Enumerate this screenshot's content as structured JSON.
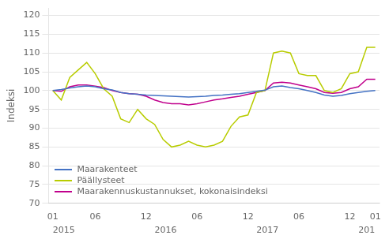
{
  "chart_data": {
    "type": "line",
    "y_label": "Indeksi",
    "categories": [
      "01",
      null,
      null,
      null,
      null,
      "06",
      null,
      null,
      null,
      null,
      null,
      "12",
      null,
      null,
      null,
      null,
      null,
      "06",
      null,
      null,
      null,
      null,
      null,
      "12",
      null,
      null,
      null,
      null,
      null,
      "06",
      null,
      null,
      null,
      null,
      null,
      "12",
      null,
      null,
      "01"
    ],
    "series": [
      {
        "name": "Maarakenteet",
        "color": "#4472c4",
        "values": [
          100.0,
          100.3,
          100.7,
          101.0,
          101.2,
          101.0,
          100.5,
          100.2,
          99.5,
          99.2,
          99.0,
          98.8,
          98.7,
          98.6,
          98.5,
          98.4,
          98.3,
          98.4,
          98.5,
          98.7,
          98.8,
          99.0,
          99.2,
          99.5,
          99.8,
          100.1,
          101.0,
          101.2,
          100.8,
          100.5,
          100.0,
          99.5,
          98.8,
          98.5,
          98.7,
          99.2,
          99.5,
          99.8,
          100.0
        ]
      },
      {
        "name": "Päällysteet",
        "color": "#b8cc00",
        "values": [
          100.0,
          97.5,
          103.5,
          105.5,
          107.5,
          104.5,
          100.5,
          98.5,
          92.5,
          91.5,
          95.0,
          92.5,
          91.0,
          87.0,
          85.0,
          85.5,
          86.5,
          85.5,
          85.0,
          85.5,
          86.5,
          90.5,
          93.0,
          93.5,
          99.5,
          100.0,
          110.0,
          110.5,
          110.0,
          104.5,
          104.0,
          104.0,
          100.0,
          99.5,
          100.5,
          104.5,
          105.0,
          111.5,
          111.5
        ]
      },
      {
        "name": "Maarakennuskustannukset, kokonaisindeksi",
        "color": "#c0008c",
        "values": [
          100.0,
          99.8,
          101.0,
          101.5,
          101.5,
          101.2,
          100.8,
          100.0,
          99.5,
          99.2,
          99.0,
          98.5,
          97.5,
          96.8,
          96.5,
          96.5,
          96.2,
          96.5,
          97.0,
          97.5,
          97.8,
          98.2,
          98.5,
          99.0,
          99.5,
          100.0,
          102.0,
          102.2,
          102.0,
          101.5,
          101.0,
          100.5,
          99.5,
          99.3,
          99.5,
          100.5,
          101.0,
          103.0,
          103.0
        ]
      }
    ],
    "annotations": [
      {
        "x": 0,
        "text": "2015"
      },
      {
        "x": 12,
        "text": "2016"
      },
      {
        "x": 24,
        "text": "2017"
      },
      {
        "x": 36,
        "text": "201"
      }
    ],
    "ylim": [
      70,
      122
    ],
    "yticks": [
      70,
      75,
      80,
      85,
      90,
      95,
      100,
      105,
      110,
      115,
      120
    ],
    "grid": "y",
    "legend": "lower left"
  }
}
